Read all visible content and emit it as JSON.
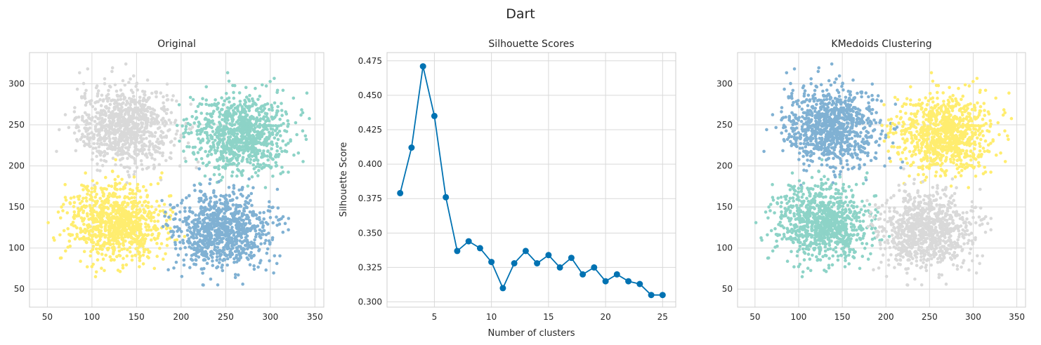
{
  "figure_title": "Dart",
  "colors": {
    "teal": "#8dd3c7",
    "blue": "#80b1d3",
    "yellow": "#ffed6f",
    "gray": "#d9d9d9",
    "line": "#0072b2",
    "grid": "#d9d9d9",
    "spine": "#cfcfcf"
  },
  "chart_data": [
    {
      "type": "scatter",
      "title": "Original",
      "xlabel": "",
      "ylabel": "",
      "xlim": [
        30,
        360
      ],
      "ylim": [
        28,
        338
      ],
      "xticks": [
        50,
        100,
        150,
        200,
        250,
        300,
        350
      ],
      "yticks": [
        50,
        100,
        150,
        200,
        250,
        300
      ],
      "grid": true,
      "clusters": [
        {
          "color": "gray",
          "center": [
            138,
            248
          ],
          "spread": [
            27,
            24
          ],
          "count": 900,
          "xrange": [
            60,
            260
          ],
          "yrange": [
            175,
            325
          ]
        },
        {
          "color": "teal",
          "center": [
            265,
            238
          ],
          "spread": [
            28,
            24
          ],
          "count": 900,
          "xrange": [
            195,
            345
          ],
          "yrange": [
            170,
            320
          ]
        },
        {
          "color": "yellow",
          "center": [
            128,
            130
          ],
          "spread": [
            27,
            24
          ],
          "count": 900,
          "xrange": [
            45,
            205
          ],
          "yrange": [
            58,
            210
          ]
        },
        {
          "color": "blue",
          "center": [
            245,
            120
          ],
          "spread": [
            27,
            24
          ],
          "count": 900,
          "xrange": [
            175,
            330
          ],
          "yrange": [
            42,
            200
          ]
        }
      ]
    },
    {
      "type": "line",
      "title": "Silhouette Scores",
      "xlabel": "Number of clusters",
      "ylabel": "Silhouette Score",
      "xlim": [
        0.85,
        26.15
      ],
      "ylim": [
        0.2962,
        0.481
      ],
      "xticks": [
        5,
        10,
        15,
        20,
        25
      ],
      "yticks": [
        0.3,
        0.325,
        0.35,
        0.375,
        0.4,
        0.425,
        0.45,
        0.475
      ],
      "grid": true,
      "x": [
        2,
        3,
        4,
        5,
        6,
        7,
        8,
        9,
        10,
        11,
        12,
        13,
        14,
        15,
        16,
        17,
        18,
        19,
        20,
        21,
        22,
        23,
        24,
        25
      ],
      "y": [
        0.379,
        0.412,
        0.471,
        0.435,
        0.376,
        0.337,
        0.344,
        0.339,
        0.329,
        0.31,
        0.328,
        0.337,
        0.328,
        0.334,
        0.325,
        0.332,
        0.32,
        0.325,
        0.315,
        0.32,
        0.315,
        0.313,
        0.305,
        0.305
      ]
    },
    {
      "type": "scatter",
      "title": "KMedoids Clustering",
      "xlabel": "",
      "ylabel": "",
      "xlim": [
        30,
        360
      ],
      "ylim": [
        28,
        338
      ],
      "xticks": [
        50,
        100,
        150,
        200,
        250,
        300,
        350
      ],
      "yticks": [
        50,
        100,
        150,
        200,
        250,
        300
      ],
      "grid": true,
      "clusters": [
        {
          "color": "blue",
          "center": [
            138,
            248
          ],
          "spread": [
            27,
            24
          ],
          "count": 900,
          "xrange": [
            60,
            260
          ],
          "yrange": [
            175,
            325
          ]
        },
        {
          "color": "yellow",
          "center": [
            265,
            238
          ],
          "spread": [
            28,
            24
          ],
          "count": 900,
          "xrange": [
            195,
            345
          ],
          "yrange": [
            170,
            320
          ]
        },
        {
          "color": "teal",
          "center": [
            128,
            130
          ],
          "spread": [
            27,
            24
          ],
          "count": 900,
          "xrange": [
            45,
            205
          ],
          "yrange": [
            58,
            210
          ]
        },
        {
          "color": "gray",
          "center": [
            245,
            120
          ],
          "spread": [
            27,
            24
          ],
          "count": 900,
          "xrange": [
            175,
            330
          ],
          "yrange": [
            42,
            200
          ]
        }
      ]
    }
  ]
}
